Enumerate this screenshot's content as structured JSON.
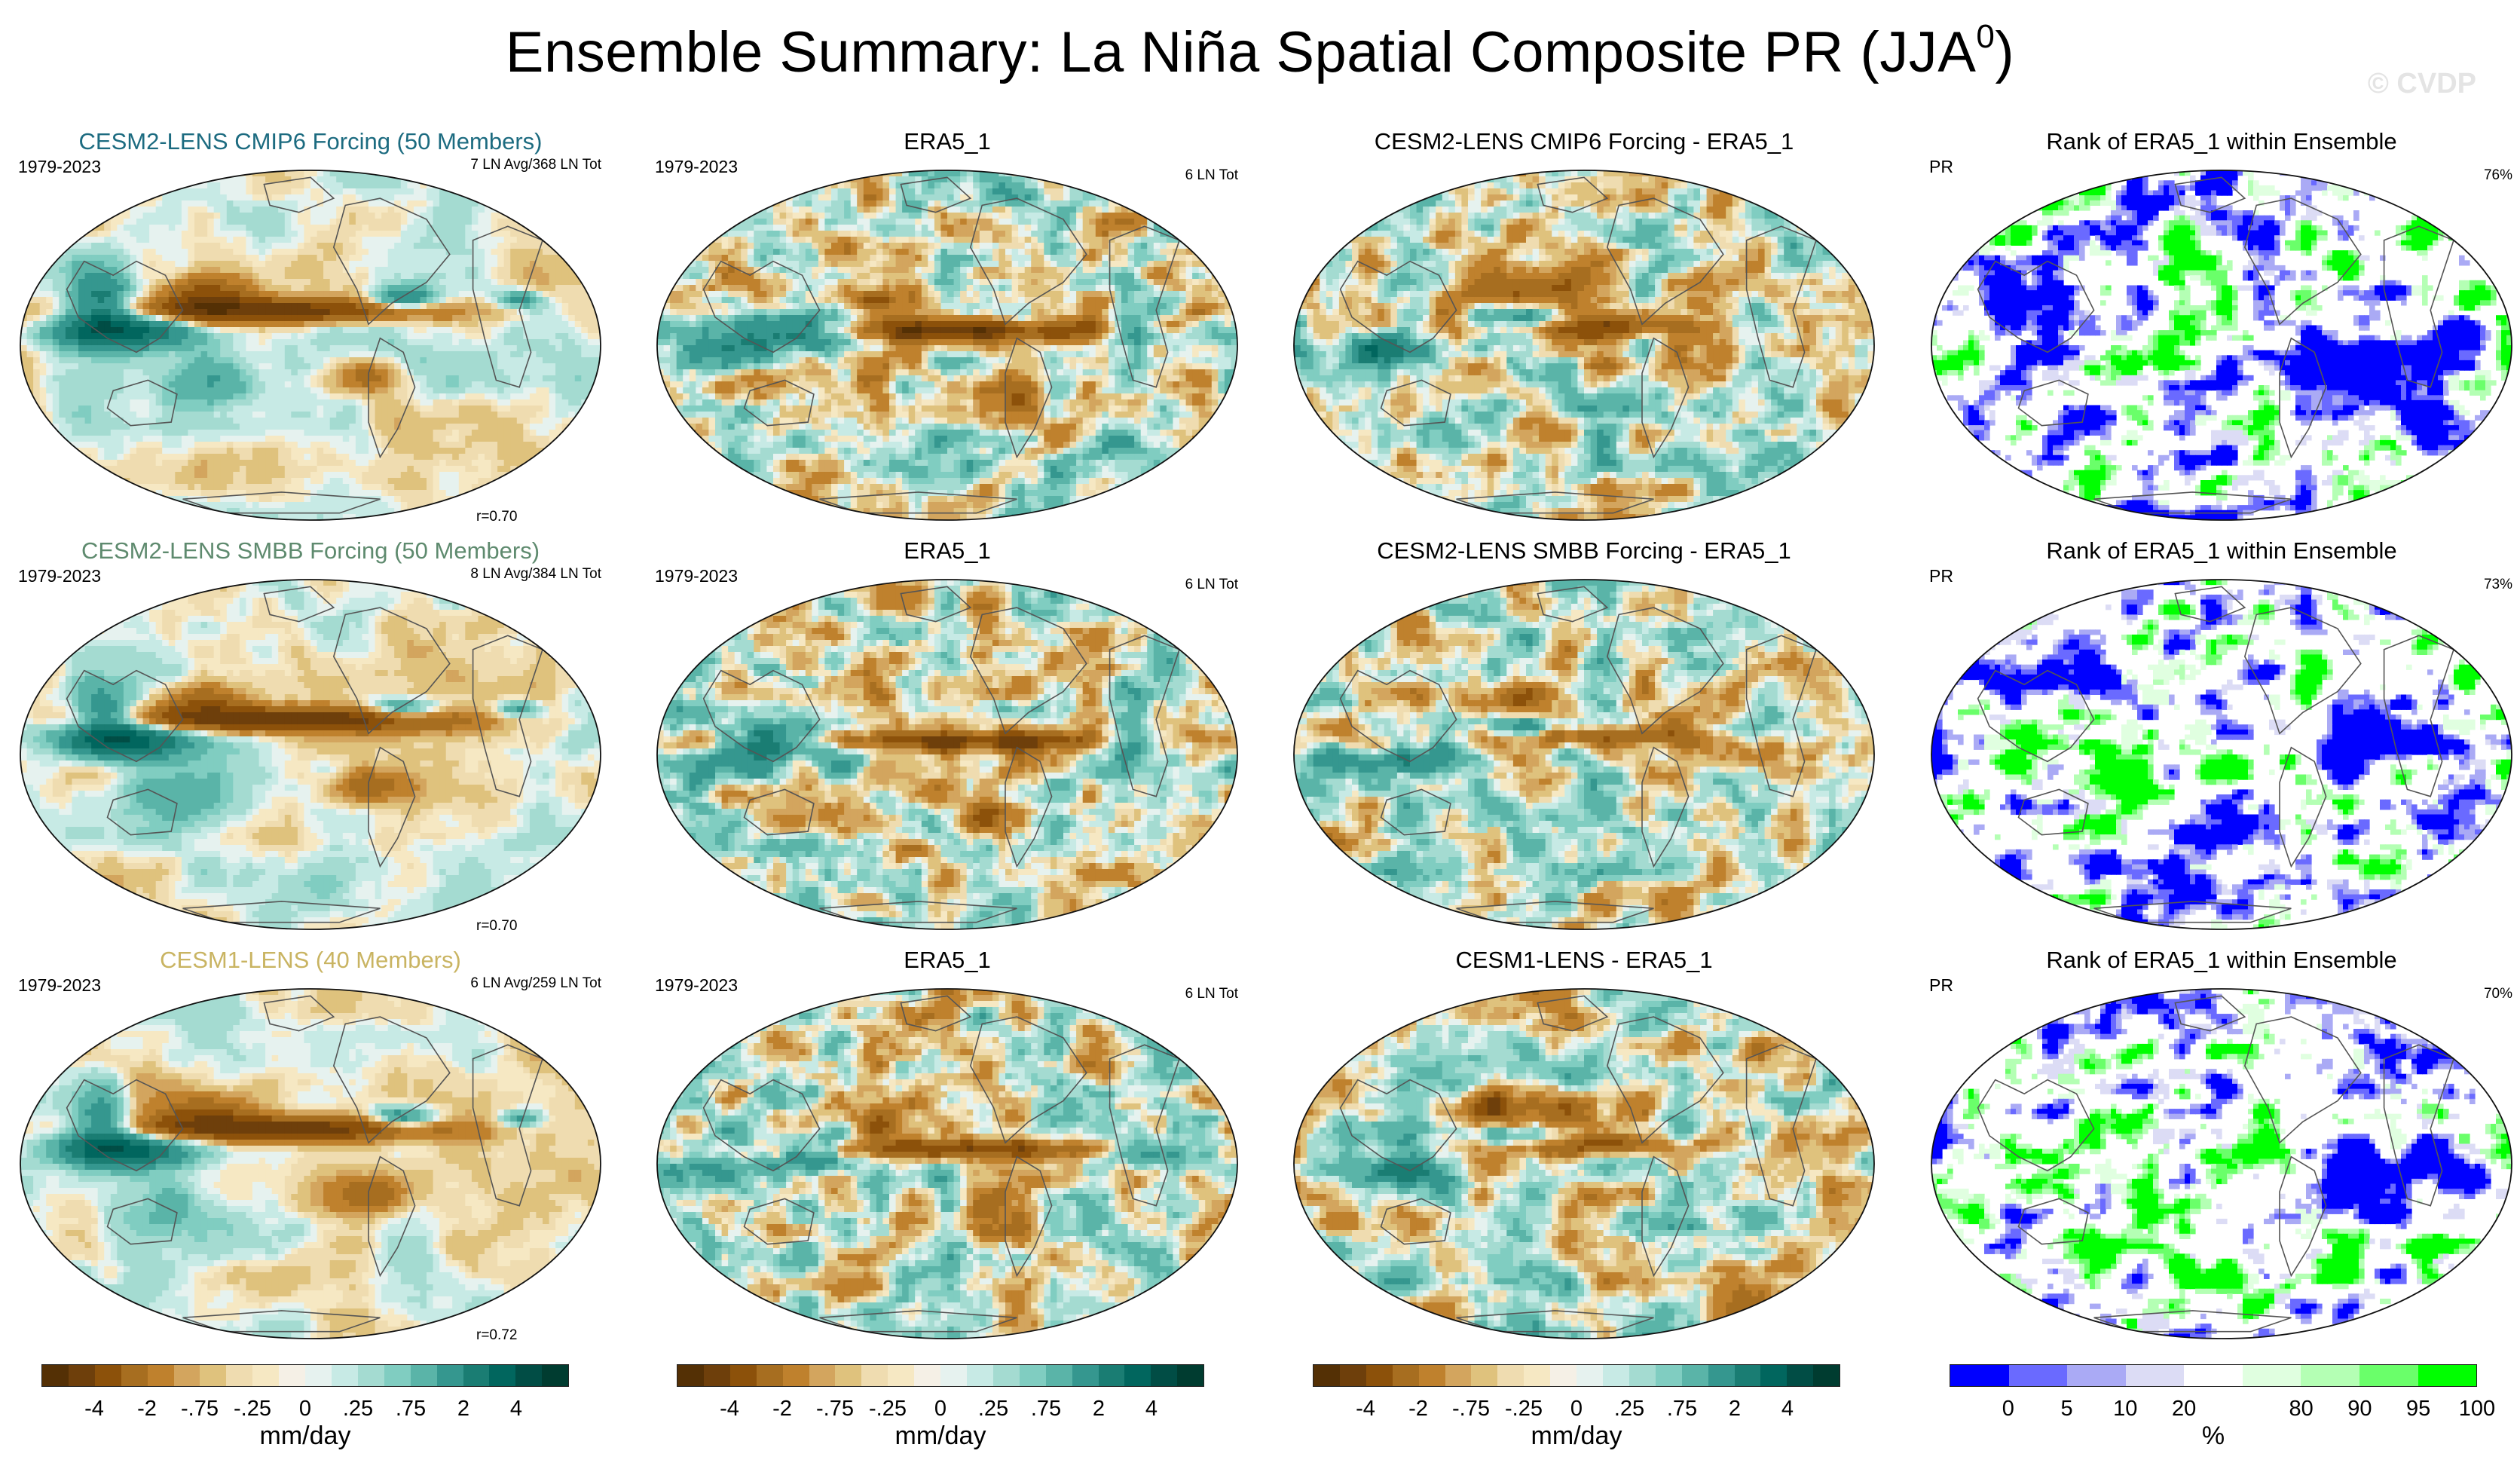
{
  "title": {
    "text": "Ensemble Summary: La Niña Spatial Composite PR (JJA",
    "sup": "0",
    "close": ")"
  },
  "watermark": "© CVDP",
  "colors": {
    "diverging": [
      "#543005",
      "#6e3f0b",
      "#8c510a",
      "#a76e20",
      "#bf812d",
      "#d3a55e",
      "#dfc27d",
      "#efdcb0",
      "#f6e8c3",
      "#f5f0e6",
      "#e6f2ef",
      "#c7eae5",
      "#a4dbd1",
      "#80cdc1",
      "#5ab4a8",
      "#35978f",
      "#1a7d73",
      "#01665e",
      "#014d45",
      "#003c30"
    ],
    "rank": [
      "#0000ff",
      "#6a6aff",
      "#aaaaf5",
      "#dcdcf5",
      "#ffffff",
      "#e0ffe0",
      "#b4ffb4",
      "#6aff6a",
      "#00ff00"
    ]
  },
  "rows": [
    {
      "model": {
        "title": "CESM2-LENS CMIP6 Forcing (50 Members)",
        "title_color": "#1c6b80",
        "period": "1979-2023",
        "count": "7 LN Avg/368 LN Tot",
        "corr": "r=0.70"
      },
      "obs": {
        "title": "ERA5_1",
        "period": "1979-2023",
        "count": "6 LN Tot"
      },
      "diff": {
        "title": "CESM2-LENS CMIP6 Forcing - ERA5_1"
      },
      "rank": {
        "title": "Rank of ERA5_1 within Ensemble",
        "var": "PR",
        "pct": "76%"
      }
    },
    {
      "model": {
        "title": "CESM2-LENS SMBB Forcing (50 Members)",
        "title_color": "#5e8a6e",
        "period": "1979-2023",
        "count": "8 LN Avg/384 LN Tot",
        "corr": "r=0.70"
      },
      "obs": {
        "title": "ERA5_1",
        "period": "1979-2023",
        "count": "6 LN Tot"
      },
      "diff": {
        "title": "CESM2-LENS SMBB Forcing - ERA5_1"
      },
      "rank": {
        "title": "Rank of ERA5_1 within Ensemble",
        "var": "PR",
        "pct": "73%"
      }
    },
    {
      "model": {
        "title": "CESM1-LENS (40 Members)",
        "title_color": "#c9b462",
        "period": "1979-2023",
        "count": "6 LN Avg/259 LN Tot",
        "corr": "r=0.72"
      },
      "obs": {
        "title": "ERA5_1",
        "period": "1979-2023",
        "count": "6 LN Tot"
      },
      "diff": {
        "title": "CESM1-LENS - ERA5_1"
      },
      "rank": {
        "title": "Rank of ERA5_1 within Ensemble",
        "var": "PR",
        "pct": "70%"
      }
    }
  ],
  "colorbars": {
    "diverging": {
      "ticks": [
        "-4",
        "-2",
        "-.75",
        "-.25",
        "0",
        ".25",
        ".75",
        "2",
        "4"
      ],
      "tick_bins": [
        2,
        4,
        6,
        8,
        10,
        12,
        14,
        16,
        18
      ],
      "units": "mm/day"
    },
    "rank": {
      "ticks": [
        "0",
        "5",
        "10",
        "20",
        "80",
        "90",
        "95",
        "100"
      ],
      "tick_bins": [
        1,
        2,
        3,
        4,
        6,
        7,
        8,
        9
      ],
      "units": "%"
    }
  },
  "chart_data": {
    "type": "heatmap",
    "title": "Ensemble Summary: La Niña Spatial Composite PR (JJA0)",
    "panels": [
      "CESM2-LENS CMIP6 Forcing (50 Members)",
      "ERA5_1",
      "CESM2-LENS CMIP6 Forcing - ERA5_1",
      "Rank of ERA5_1 within Ensemble",
      "CESM2-LENS SMBB Forcing (50 Members)",
      "ERA5_1",
      "CESM2-LENS SMBB Forcing - ERA5_1",
      "Rank of ERA5_1 within Ensemble",
      "CESM1-LENS (40 Members)",
      "ERA5_1",
      "CESM1-LENS - ERA5_1",
      "Rank of ERA5_1 within Ensemble"
    ],
    "pattern_correlations": [
      0.7,
      0.7,
      0.72
    ],
    "rank_percent_values": [
      76,
      73,
      70
    ],
    "precip_levels_mm_per_day": [
      -4,
      -2,
      -0.75,
      -0.25,
      0,
      0.25,
      0.75,
      2,
      4
    ],
    "rank_levels_percent": [
      0,
      5,
      10,
      20,
      80,
      90,
      95,
      100
    ]
  }
}
